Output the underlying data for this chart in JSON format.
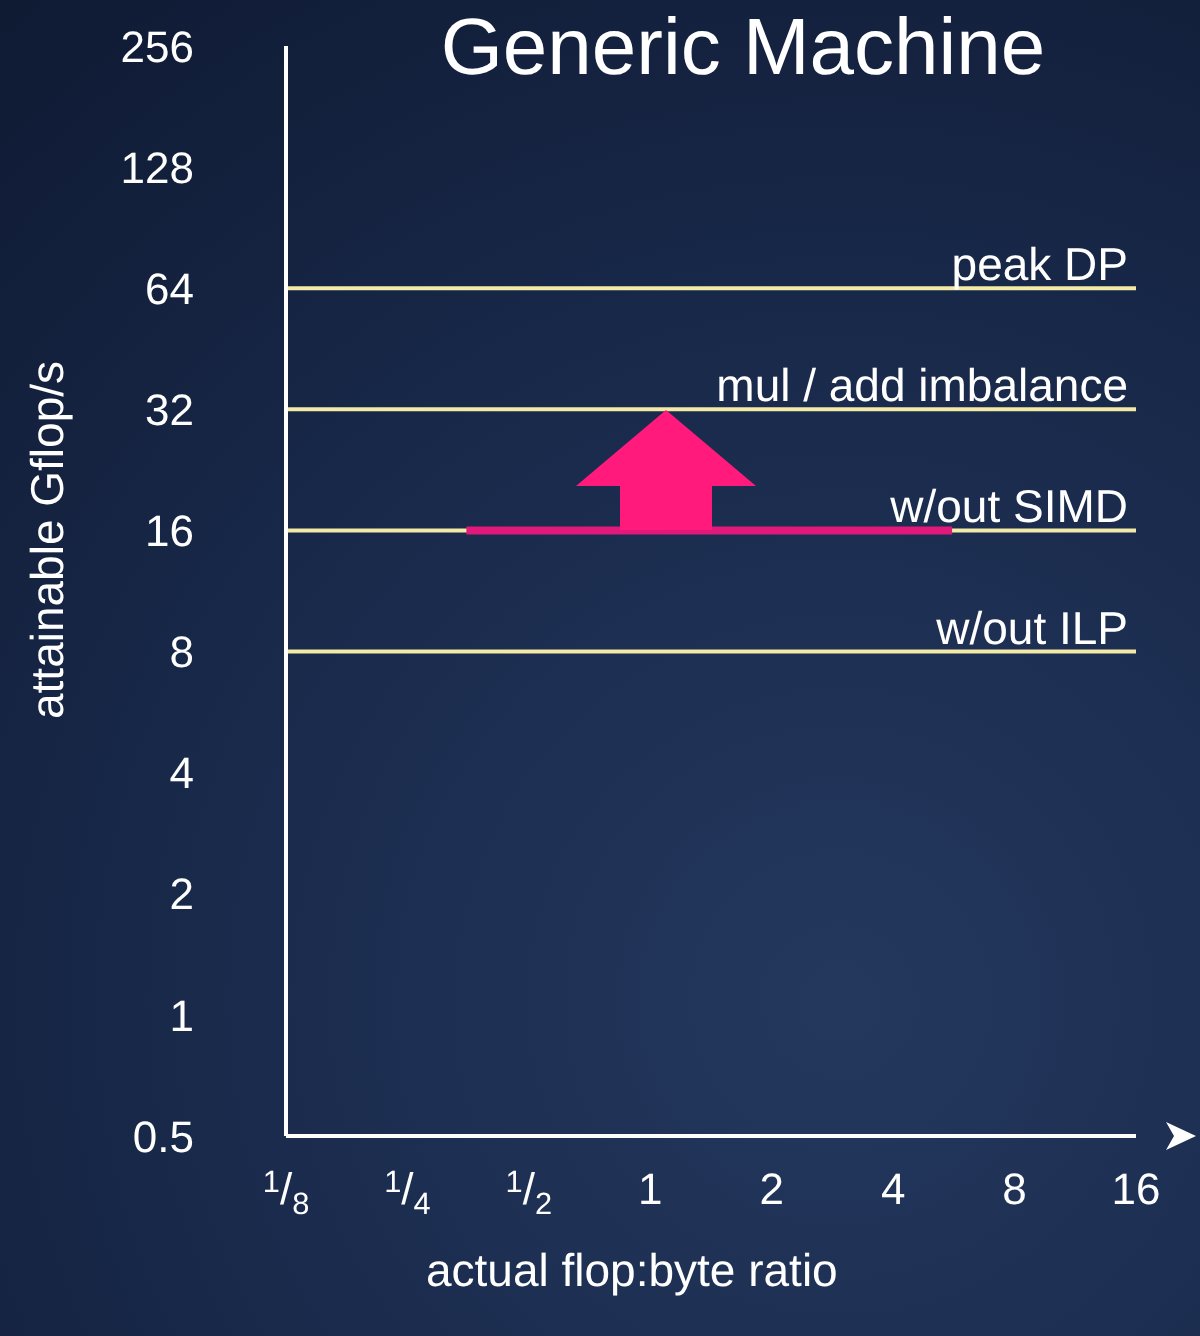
{
  "chart_data": {
    "type": "line",
    "title": "Generic Machine",
    "xlabel": "actual flop:byte ratio",
    "ylabel": "attainable Gflop/s",
    "log": "xy",
    "grid": false,
    "marker": "none",
    "line_style": "solid",
    "xlim": [
      0.125,
      16
    ],
    "ylim": [
      0.5,
      256
    ],
    "xticks": [
      {
        "value": 0.125,
        "label": "$^{1}$/$_{8}$"
      },
      {
        "value": 0.25,
        "label": "$^{1}$/$_{4}$"
      },
      {
        "value": 0.5,
        "label": "$^{1}$/$_{2}$"
      },
      1,
      2,
      4,
      8,
      16
    ],
    "yticks": [
      0.5,
      1,
      2,
      4,
      8,
      16,
      32,
      64,
      128,
      256
    ],
    "series": [
      {
        "x": [
          0.35,
          5.6
        ],
        "values": [
          16,
          16
        ],
        "color": "#e0197a"
      }
    ],
    "ref_lines": [
      {
        "axis": "y",
        "value": 64,
        "label": "peak DP",
        "color": "#f3eaa8"
      },
      {
        "axis": "y",
        "value": 32,
        "label": "mul / add imbalance",
        "color": "#f3eaa8"
      },
      {
        "axis": "y",
        "value": 16,
        "label": "w/out SIMD",
        "color": "#f3eaa8"
      },
      {
        "axis": "y",
        "value": 8,
        "label": "w/out ILP",
        "color": "#f3eaa8"
      }
    ]
  }
}
